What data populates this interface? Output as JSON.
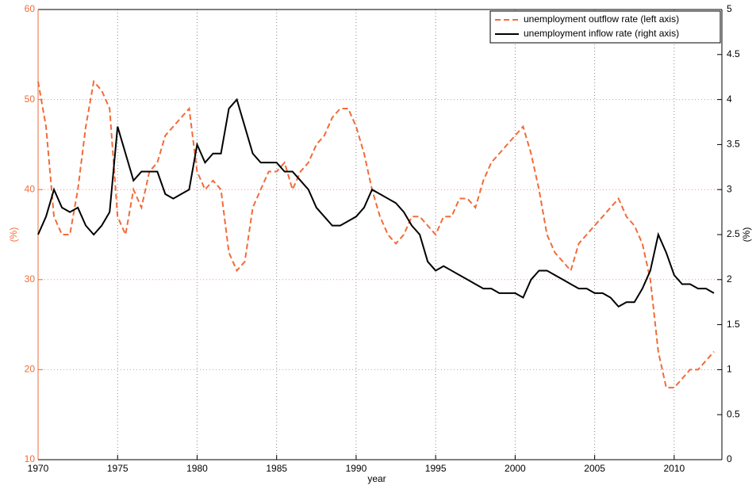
{
  "chart_data": {
    "type": "line",
    "xlabel": "year",
    "ylabel": "(%)",
    "y2label": "(%)",
    "xlim": [
      1970,
      2013
    ],
    "xticks": [
      1970,
      1975,
      1980,
      1985,
      1990,
      1995,
      2000,
      2005,
      2010
    ],
    "ylim": [
      10,
      60
    ],
    "yticks": [
      10,
      20,
      30,
      40,
      50,
      60
    ],
    "y2lim": [
      0,
      5
    ],
    "y2ticks": [
      0,
      0.5,
      1,
      1.5,
      2,
      2.5,
      3,
      3.5,
      4,
      4.5,
      5
    ],
    "grid": true,
    "legend": "upper right",
    "left_axis_color": "#f26b3a",
    "x": [
      1970,
      1970.5,
      1971,
      1971.5,
      1972,
      1972.5,
      1973,
      1973.5,
      1974,
      1974.5,
      1975,
      1975.5,
      1976,
      1976.5,
      1977,
      1977.5,
      1978,
      1978.5,
      1979,
      1979.5,
      1980,
      1980.5,
      1981,
      1981.5,
      1982,
      1982.5,
      1983,
      1983.5,
      1984,
      1984.5,
      1985,
      1985.5,
      1986,
      1986.5,
      1987,
      1987.5,
      1988,
      1988.5,
      1989,
      1989.5,
      1990,
      1990.5,
      1991,
      1991.5,
      1992,
      1992.5,
      1993,
      1993.5,
      1994,
      1994.5,
      1995,
      1995.5,
      1996,
      1996.5,
      1997,
      1997.5,
      1998,
      1998.5,
      1999,
      1999.5,
      2000,
      2000.5,
      2001,
      2001.5,
      2002,
      2002.5,
      2003,
      2003.5,
      2004,
      2004.5,
      2005,
      2005.5,
      2006,
      2006.5,
      2007,
      2007.5,
      2008,
      2008.5,
      2009,
      2009.5,
      2010,
      2010.5,
      2011,
      2011.5,
      2012,
      2012.5
    ],
    "series": [
      {
        "name": "unemployment outflow rate (left axis)",
        "color": "#f26b3a",
        "line_style": "dashed",
        "axis": "y",
        "values": [
          52,
          47,
          37,
          35,
          35,
          40,
          47,
          52,
          51,
          49,
          37,
          35,
          40,
          38,
          42,
          43,
          46,
          47,
          48,
          49,
          42,
          40,
          41,
          40,
          33,
          31,
          32,
          38,
          40,
          42,
          42,
          43,
          40,
          42,
          43,
          45,
          46,
          48,
          49,
          49,
          47,
          44,
          40,
          37,
          35,
          34,
          35,
          37,
          37,
          36,
          35,
          37,
          37,
          39,
          39,
          38,
          41,
          43,
          44,
          45,
          46,
          47,
          44,
          40,
          35,
          33,
          32,
          31,
          34,
          35,
          36,
          37,
          38,
          39,
          37,
          36,
          34,
          30,
          22,
          18,
          18,
          19,
          20,
          20,
          21,
          22
        ]
      },
      {
        "name": "unemployment inflow rate (right axis)",
        "color": "#000000",
        "line_style": "solid",
        "axis": "y2",
        "values": [
          2.5,
          2.7,
          3.0,
          2.8,
          2.75,
          2.8,
          2.6,
          2.5,
          2.6,
          2.75,
          3.7,
          3.4,
          3.1,
          3.2,
          3.2,
          3.2,
          2.95,
          2.9,
          2.95,
          3.0,
          3.5,
          3.3,
          3.4,
          3.4,
          3.9,
          4.0,
          3.7,
          3.4,
          3.3,
          3.3,
          3.3,
          3.2,
          3.2,
          3.1,
          3.0,
          2.8,
          2.7,
          2.6,
          2.6,
          2.65,
          2.7,
          2.8,
          3.0,
          2.95,
          2.9,
          2.85,
          2.75,
          2.6,
          2.5,
          2.2,
          2.1,
          2.15,
          2.1,
          2.05,
          2.0,
          1.95,
          1.9,
          1.9,
          1.85,
          1.85,
          1.85,
          1.8,
          2.0,
          2.1,
          2.1,
          2.05,
          2.0,
          1.95,
          1.9,
          1.9,
          1.85,
          1.85,
          1.8,
          1.7,
          1.75,
          1.75,
          1.9,
          2.1,
          2.5,
          2.3,
          2.05,
          1.95,
          1.95,
          1.9,
          1.9,
          1.85
        ]
      }
    ]
  }
}
